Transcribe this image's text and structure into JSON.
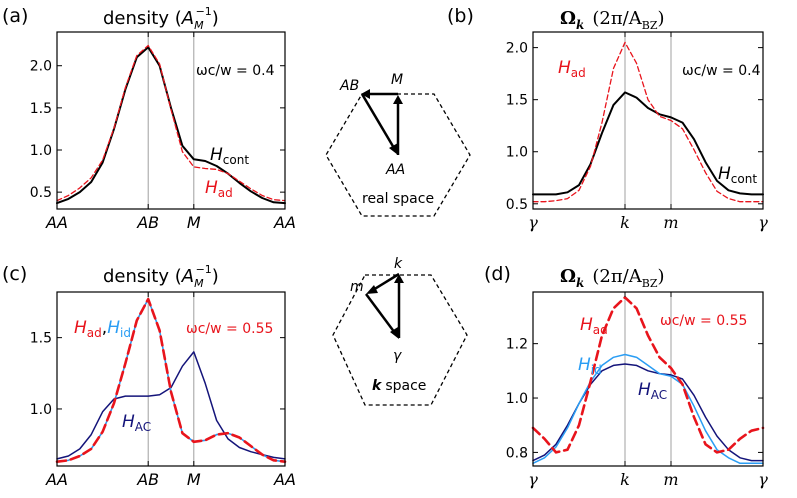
{
  "figure_title": "Four panel figure: density and Berry curvature along high-symmetry paths",
  "colors": {
    "black": "#000000",
    "red": "#e8141c",
    "light_blue": "#2a9df4",
    "navy": "#14147a",
    "grid": "#a0a0a0"
  },
  "chart_data": [
    {
      "panel": "(a)",
      "type": "line",
      "title": "density (A_M^-1)",
      "title_text": "density (",
      "title_sym": "A",
      "title_sub": "M",
      "title_sup": "−1",
      "title_close": ")",
      "annotation": "ωc/w = 0.4",
      "x_ticks": [
        "AA",
        "AB",
        "M",
        "AA"
      ],
      "y_ticks": [
        "0.5",
        "1.0",
        "1.5",
        "2.0"
      ],
      "ylim": [
        0.3,
        2.4
      ],
      "xlim": [
        0,
        1
      ],
      "tick_positions": [
        0,
        0.4,
        0.6,
        1.0
      ],
      "series": [
        {
          "name": "H_cont",
          "label": "H",
          "sub": "cont",
          "color": "#000000",
          "style": "solid",
          "width": 2,
          "x": [
            0,
            0.05,
            0.1,
            0.15,
            0.2,
            0.25,
            0.3,
            0.35,
            0.4,
            0.45,
            0.5,
            0.55,
            0.6,
            0.65,
            0.7,
            0.75,
            0.8,
            0.85,
            0.9,
            0.95,
            1.0
          ],
          "y": [
            0.37,
            0.42,
            0.5,
            0.62,
            0.85,
            1.25,
            1.72,
            2.1,
            2.22,
            2.0,
            1.5,
            1.05,
            0.89,
            0.87,
            0.81,
            0.72,
            0.61,
            0.51,
            0.43,
            0.38,
            0.37
          ]
        },
        {
          "name": "H_ad",
          "label": "H",
          "sub": "ad",
          "color": "#e8141c",
          "style": "dashed",
          "width": 1.3,
          "x": [
            0,
            0.05,
            0.1,
            0.15,
            0.2,
            0.25,
            0.3,
            0.35,
            0.4,
            0.45,
            0.5,
            0.55,
            0.6,
            0.65,
            0.7,
            0.75,
            0.8,
            0.85,
            0.9,
            0.95,
            1.0
          ],
          "y": [
            0.4,
            0.46,
            0.55,
            0.67,
            0.88,
            1.26,
            1.74,
            2.12,
            2.24,
            2.02,
            1.48,
            0.98,
            0.8,
            0.78,
            0.77,
            0.72,
            0.63,
            0.54,
            0.46,
            0.41,
            0.4
          ]
        }
      ]
    },
    {
      "panel": "(b)",
      "type": "line",
      "title": "Ω_k (2π/A_BZ)",
      "title_sym": "Ω",
      "title_sub": "k",
      "title_rest": "(2π/A",
      "title_sub2": "BZ",
      "title_close": ")",
      "annotation": "ωc/w = 0.4",
      "x_ticks": [
        "γ",
        "k",
        "m",
        "γ"
      ],
      "y_ticks": [
        "0.5",
        "1.0",
        "1.5",
        "2.0"
      ],
      "ylim": [
        0.45,
        2.15
      ],
      "xlim": [
        0,
        1
      ],
      "tick_positions": [
        0,
        0.4,
        0.6,
        1.0
      ],
      "series": [
        {
          "name": "H_cont",
          "label": "H",
          "sub": "cont",
          "color": "#000000",
          "style": "solid",
          "width": 2,
          "x": [
            0,
            0.05,
            0.1,
            0.15,
            0.2,
            0.25,
            0.3,
            0.35,
            0.4,
            0.45,
            0.5,
            0.55,
            0.6,
            0.65,
            0.7,
            0.75,
            0.8,
            0.85,
            0.9,
            0.95,
            1.0
          ],
          "y": [
            0.59,
            0.59,
            0.59,
            0.61,
            0.68,
            0.88,
            1.18,
            1.45,
            1.57,
            1.52,
            1.42,
            1.36,
            1.33,
            1.28,
            1.12,
            0.9,
            0.72,
            0.63,
            0.6,
            0.59,
            0.59
          ]
        },
        {
          "name": "H_ad",
          "label": "H",
          "sub": "ad",
          "color": "#e8141c",
          "style": "dashed",
          "width": 1.3,
          "x": [
            0,
            0.05,
            0.1,
            0.15,
            0.2,
            0.25,
            0.3,
            0.35,
            0.4,
            0.45,
            0.5,
            0.55,
            0.6,
            0.65,
            0.7,
            0.75,
            0.8,
            0.85,
            0.9,
            0.95,
            1.0
          ],
          "y": [
            0.52,
            0.52,
            0.53,
            0.55,
            0.63,
            0.86,
            1.28,
            1.8,
            2.05,
            1.85,
            1.5,
            1.34,
            1.3,
            1.22,
            1.02,
            0.8,
            0.62,
            0.55,
            0.52,
            0.52,
            0.52
          ]
        }
      ]
    },
    {
      "panel": "(c)",
      "type": "line",
      "title": "density (A_M^-1)",
      "title_text": "density (",
      "title_sym": "A",
      "title_sub": "M",
      "title_sup": "−1",
      "title_close": ")",
      "annotation": "ωc/w = 0.55",
      "x_ticks": [
        "AA",
        "AB",
        "M",
        "AA"
      ],
      "y_ticks": [
        "1.0",
        "1.5"
      ],
      "ylim": [
        0.6,
        1.82
      ],
      "xlim": [
        0,
        1
      ],
      "tick_positions": [
        0,
        0.4,
        0.6,
        1.0
      ],
      "series": [
        {
          "name": "H_AC",
          "label": "H",
          "sub": "AC",
          "color": "#14147a",
          "style": "solid",
          "width": 1.5,
          "x": [
            0,
            0.05,
            0.1,
            0.15,
            0.2,
            0.25,
            0.3,
            0.35,
            0.4,
            0.45,
            0.5,
            0.55,
            0.6,
            0.65,
            0.7,
            0.75,
            0.8,
            0.85,
            0.9,
            0.95,
            1.0
          ],
          "y": [
            0.65,
            0.67,
            0.72,
            0.82,
            0.98,
            1.07,
            1.09,
            1.09,
            1.09,
            1.1,
            1.15,
            1.3,
            1.4,
            1.18,
            0.92,
            0.79,
            0.73,
            0.7,
            0.68,
            0.66,
            0.65
          ]
        },
        {
          "name": "H_id",
          "label": "H",
          "sub": "id",
          "color": "#2a9df4",
          "style": "solid",
          "width": 1.6,
          "x": [
            0,
            0.05,
            0.1,
            0.15,
            0.2,
            0.25,
            0.3,
            0.35,
            0.4,
            0.45,
            0.5,
            0.55,
            0.6,
            0.65,
            0.7,
            0.75,
            0.8,
            0.85,
            0.9,
            0.95,
            1.0
          ],
          "y": [
            0.63,
            0.64,
            0.67,
            0.72,
            0.84,
            1.04,
            1.32,
            1.62,
            1.77,
            1.55,
            1.12,
            0.83,
            0.77,
            0.78,
            0.82,
            0.83,
            0.8,
            0.74,
            0.68,
            0.64,
            0.63
          ]
        },
        {
          "name": "H_ad",
          "label": "H",
          "sub": "ad",
          "color": "#e8141c",
          "style": "dashed",
          "width": 2.6,
          "x": [
            0,
            0.05,
            0.1,
            0.15,
            0.2,
            0.25,
            0.3,
            0.35,
            0.4,
            0.45,
            0.5,
            0.55,
            0.6,
            0.65,
            0.7,
            0.75,
            0.8,
            0.85,
            0.9,
            0.95,
            1.0
          ],
          "y": [
            0.63,
            0.64,
            0.67,
            0.72,
            0.84,
            1.04,
            1.32,
            1.62,
            1.77,
            1.55,
            1.12,
            0.83,
            0.77,
            0.78,
            0.82,
            0.83,
            0.8,
            0.74,
            0.68,
            0.64,
            0.63
          ]
        }
      ]
    },
    {
      "panel": "(d)",
      "type": "line",
      "title": "Ω_k (2π/A_BZ)",
      "title_sym": "Ω",
      "title_sub": "k",
      "title_rest": "(2π/A",
      "title_sub2": "BZ",
      "title_close": ")",
      "annotation": "ωc/w = 0.55",
      "x_ticks": [
        "γ",
        "k",
        "m",
        "γ"
      ],
      "y_ticks": [
        "0.8",
        "1.0",
        "1.2"
      ],
      "ylim": [
        0.75,
        1.39
      ],
      "xlim": [
        0,
        1
      ],
      "tick_positions": [
        0,
        0.4,
        0.6,
        1.0
      ],
      "series": [
        {
          "name": "H_AC",
          "label": "H",
          "sub": "AC",
          "color": "#14147a",
          "style": "solid",
          "width": 1.5,
          "x": [
            0,
            0.05,
            0.1,
            0.15,
            0.2,
            0.25,
            0.3,
            0.35,
            0.4,
            0.45,
            0.5,
            0.55,
            0.6,
            0.65,
            0.7,
            0.75,
            0.8,
            0.85,
            0.9,
            0.95,
            1.0
          ],
          "y": [
            0.77,
            0.79,
            0.83,
            0.9,
            0.98,
            1.05,
            1.1,
            1.12,
            1.125,
            1.12,
            1.1,
            1.09,
            1.085,
            1.07,
            1.01,
            0.93,
            0.86,
            0.81,
            0.78,
            0.77,
            0.77
          ]
        },
        {
          "name": "H_id",
          "label": "H",
          "sub": "id",
          "color": "#2a9df4",
          "style": "solid",
          "width": 1.5,
          "x": [
            0,
            0.05,
            0.1,
            0.15,
            0.2,
            0.25,
            0.3,
            0.35,
            0.4,
            0.45,
            0.5,
            0.55,
            0.6,
            0.65,
            0.7,
            0.75,
            0.8,
            0.85,
            0.9,
            0.95,
            1.0
          ],
          "y": [
            0.76,
            0.78,
            0.82,
            0.89,
            0.98,
            1.06,
            1.12,
            1.15,
            1.16,
            1.15,
            1.12,
            1.09,
            1.08,
            1.05,
            0.97,
            0.88,
            0.81,
            0.78,
            0.76,
            0.76,
            0.76
          ]
        },
        {
          "name": "H_ad",
          "label": "H",
          "sub": "ad",
          "color": "#e8141c",
          "style": "dashed",
          "width": 2.6,
          "x": [
            0,
            0.05,
            0.1,
            0.15,
            0.2,
            0.25,
            0.3,
            0.35,
            0.4,
            0.45,
            0.5,
            0.55,
            0.6,
            0.65,
            0.7,
            0.75,
            0.8,
            0.85,
            0.9,
            0.95,
            1.0
          ],
          "y": [
            0.89,
            0.85,
            0.8,
            0.81,
            0.9,
            1.06,
            1.23,
            1.33,
            1.37,
            1.33,
            1.23,
            1.15,
            1.11,
            1.05,
            0.93,
            0.83,
            0.8,
            0.81,
            0.85,
            0.88,
            0.89
          ]
        }
      ]
    }
  ],
  "diagrams": {
    "real": {
      "caption": "real space",
      "labels": {
        "top_left": "AB",
        "top_right": "M",
        "bottom": "AA"
      }
    },
    "k": {
      "caption": "space",
      "caption_bold": "k",
      "labels": {
        "top_left": "m",
        "top_right": "k",
        "bottom": "γ"
      }
    }
  },
  "inline_labels": {
    "a_hcont": "H",
    "a_hcont_sub": "cont",
    "a_had": "H",
    "a_had_sub": "ad",
    "b_had": "H",
    "b_had_sub": "ad",
    "b_hcont": "H",
    "b_hcont_sub": "cont",
    "c_had": "H",
    "c_had_sub": "ad",
    "c_comma": ",",
    "c_hid": "H",
    "c_hid_sub": "id",
    "c_hac": "H",
    "c_hac_sub": "AC",
    "d_had": "H",
    "d_had_sub": "ad",
    "d_hid": "H",
    "d_hid_sub": "id",
    "d_hac": "H",
    "d_hac_sub": "AC"
  }
}
